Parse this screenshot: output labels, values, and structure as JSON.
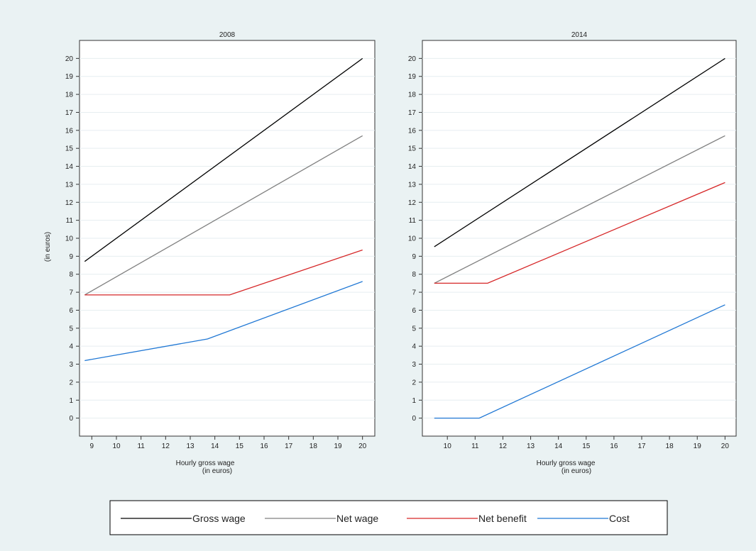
{
  "colors": {
    "background": "#eaf2f3",
    "panel": "#ffffff",
    "grid": "#e6eef0",
    "gross_wage": "#000000",
    "net_wage": "#808080",
    "net_benefit": "#d62728",
    "cost": "#1f77d4"
  },
  "chart_data": [
    {
      "type": "line",
      "title": "2008",
      "xlabel_line1": "Hourly gross wage",
      "xlabel_line2": "(in euros)",
      "ylabel": "(in euros)",
      "xlim": [
        8.5,
        20.5
      ],
      "ylim": [
        -1,
        21
      ],
      "xticks": [
        9,
        10,
        11,
        12,
        13,
        14,
        15,
        16,
        17,
        18,
        19,
        20
      ],
      "yticks": [
        0,
        1,
        2,
        3,
        4,
        5,
        6,
        7,
        8,
        9,
        10,
        11,
        12,
        13,
        14,
        15,
        16,
        17,
        18,
        19,
        20
      ],
      "grid": true,
      "series": [
        {
          "name": "Gross wage",
          "color_key": "gross_wage",
          "x": [
            8.71,
            20
          ],
          "y": [
            8.71,
            20
          ]
        },
        {
          "name": "Net wage",
          "color_key": "net_wage",
          "x": [
            8.71,
            20
          ],
          "y": [
            6.85,
            15.7
          ]
        },
        {
          "name": "Net benefit",
          "color_key": "net_benefit",
          "x": [
            8.71,
            14.6,
            20
          ],
          "y": [
            6.85,
            6.85,
            9.35
          ]
        },
        {
          "name": "Cost",
          "color_key": "cost",
          "x": [
            8.71,
            13.7,
            20
          ],
          "y": [
            3.2,
            4.4,
            7.6
          ]
        }
      ]
    },
    {
      "type": "line",
      "title": "2014",
      "xlabel_line1": "Hourly gross wage",
      "xlabel_line2": "(in euros)",
      "ylabel": "",
      "xlim": [
        9.1,
        20.4
      ],
      "ylim": [
        -1,
        21
      ],
      "xticks": [
        10,
        11,
        12,
        13,
        14,
        15,
        16,
        17,
        18,
        19,
        20
      ],
      "yticks": [
        0,
        1,
        2,
        3,
        4,
        5,
        6,
        7,
        8,
        9,
        10,
        11,
        12,
        13,
        14,
        15,
        16,
        17,
        18,
        19,
        20
      ],
      "grid": true,
      "series": [
        {
          "name": "Gross wage",
          "color_key": "gross_wage",
          "x": [
            9.53,
            20
          ],
          "y": [
            9.53,
            20
          ]
        },
        {
          "name": "Net wage",
          "color_key": "net_wage",
          "x": [
            9.53,
            20
          ],
          "y": [
            7.5,
            15.7
          ]
        },
        {
          "name": "Net benefit",
          "color_key": "net_benefit",
          "x": [
            9.53,
            11.45,
            20
          ],
          "y": [
            7.5,
            7.5,
            13.1
          ]
        },
        {
          "name": "Cost",
          "color_key": "cost",
          "x": [
            9.53,
            11.15,
            20
          ],
          "y": [
            0,
            0,
            6.3
          ]
        }
      ]
    }
  ],
  "legend": {
    "placement": "bottom",
    "entries": [
      {
        "label": "Gross wage",
        "color_key": "gross_wage"
      },
      {
        "label": "Net wage",
        "color_key": "net_wage"
      },
      {
        "label": "Net benefit",
        "color_key": "net_benefit"
      },
      {
        "label": "Cost",
        "color_key": "cost"
      }
    ]
  }
}
